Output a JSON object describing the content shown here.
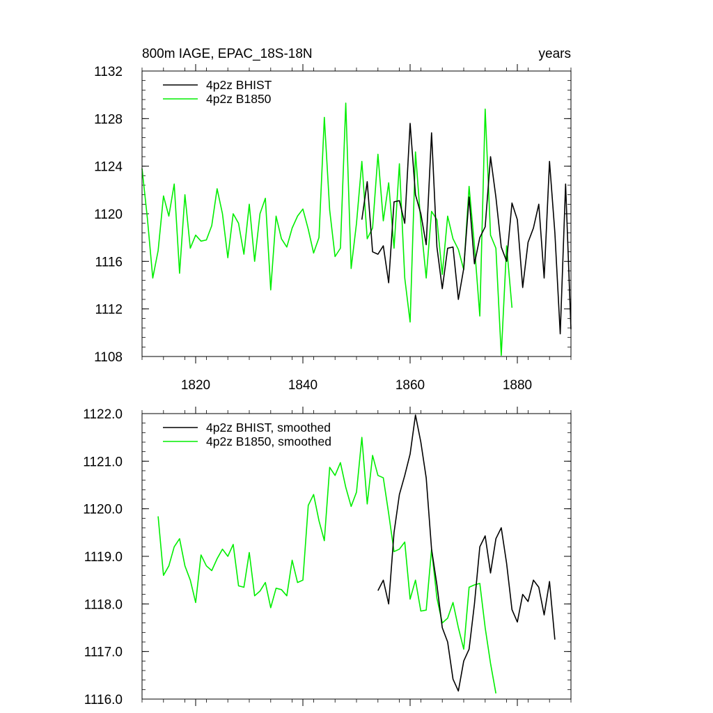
{
  "chart_data": [
    {
      "type": "line",
      "title": "800m IAGE, EPAC_18S-18N",
      "title_right": "years",
      "xlabel": "",
      "ylabel": "",
      "xlim": [
        1810,
        1890
      ],
      "ylim": [
        1108,
        1132
      ],
      "x_ticks": [
        1820,
        1840,
        1860,
        1880
      ],
      "x_tick_labels": [
        "1820",
        "1840",
        "1860",
        "1880"
      ],
      "y_ticks": [
        1108,
        1112,
        1116,
        1120,
        1124,
        1128,
        1132
      ],
      "y_tick_labels": [
        "1108",
        "1112",
        "1116",
        "1120",
        "1124",
        "1128",
        "1132"
      ],
      "grid": false,
      "legend_position": "top-left",
      "series": [
        {
          "name": "4p2z BHIST",
          "color": "#000000",
          "x_start": 1851,
          "values": [
            1119.5,
            1122.7,
            1116.8,
            1116.6,
            1117.3,
            1114.2,
            1121.0,
            1121.1,
            1119.2,
            1127.6,
            1121.6,
            1120.0,
            1117.4,
            1126.8,
            1117.2,
            1113.7,
            1117.1,
            1117.2,
            1112.8,
            1115.4,
            1121.4,
            1115.8,
            1118.0,
            1118.9,
            1124.8,
            1121.4,
            1117.2,
            1116.0,
            1120.9,
            1119.5,
            1113.8,
            1117.6,
            1118.8,
            1120.8,
            1114.6,
            1124.4,
            1118.4,
            1109.9,
            1122.5,
            1110.3
          ]
        },
        {
          "name": "4p2z B1850",
          "color": "#00ee00",
          "x_start": 1810,
          "values": [
            1123.8,
            1119.6,
            1114.6,
            1116.9,
            1121.5,
            1119.8,
            1122.5,
            1115.0,
            1121.6,
            1117.1,
            1118.2,
            1117.7,
            1117.8,
            1119.0,
            1122.1,
            1120.0,
            1116.3,
            1120.0,
            1119.2,
            1116.6,
            1120.8,
            1116.0,
            1120.0,
            1121.3,
            1113.6,
            1119.8,
            1117.9,
            1117.2,
            1118.8,
            1119.8,
            1120.4,
            1118.7,
            1116.7,
            1118.0,
            1128.1,
            1120.3,
            1116.4,
            1117.1,
            1129.3,
            1115.4,
            1119.2,
            1124.4,
            1117.9,
            1118.8,
            1125.0,
            1119.4,
            1122.6,
            1117.1,
            1124.2,
            1114.6,
            1110.9,
            1125.2,
            1119.2,
            1114.6,
            1120.2,
            1119.5,
            1114.9,
            1119.8,
            1117.9,
            1117.0,
            1115.3,
            1122.3,
            1117.3,
            1111.4,
            1128.8,
            1118.2,
            1117.1,
            1108.1,
            1117.3,
            1112.1
          ]
        }
      ]
    },
    {
      "type": "line",
      "title": "",
      "xlabel": "",
      "ylabel": "",
      "xlim": [
        1810,
        1890
      ],
      "ylim": [
        1116.0,
        1122.0
      ],
      "x_ticks": [
        1820,
        1840,
        1860,
        1880
      ],
      "y_ticks": [
        1116.0,
        1117.0,
        1118.0,
        1119.0,
        1120.0,
        1121.0,
        1122.0
      ],
      "y_tick_labels": [
        "1116.0",
        "1117.0",
        "1118.0",
        "1119.0",
        "1120.0",
        "1121.0",
        "1122.0"
      ],
      "grid": false,
      "legend_position": "top-left",
      "series": [
        {
          "name": "4p2z BHIST, smoothed",
          "color": "#000000",
          "x_start": 1854,
          "values": [
            1118.28,
            1118.5,
            1118.0,
            1119.5,
            1120.3,
            1120.7,
            1121.15,
            1121.97,
            1121.4,
            1120.65,
            1119.15,
            1118.4,
            1117.5,
            1117.2,
            1116.42,
            1116.17,
            1116.8,
            1117.05,
            1118.0,
            1119.2,
            1119.43,
            1118.65,
            1119.37,
            1119.6,
            1118.85,
            1117.88,
            1117.62,
            1118.2,
            1118.05,
            1118.5,
            1118.35,
            1117.77,
            1118.47,
            1117.25
          ]
        },
        {
          "name": "4p2z B1850, smoothed",
          "color": "#00ee00",
          "x_start": 1813,
          "values": [
            1119.84,
            1118.6,
            1118.8,
            1119.2,
            1119.37,
            1118.8,
            1118.5,
            1118.03,
            1119.03,
            1118.8,
            1118.7,
            1118.95,
            1119.15,
            1119.0,
            1119.25,
            1118.38,
            1118.35,
            1119.08,
            1118.17,
            1118.27,
            1118.45,
            1117.92,
            1118.33,
            1118.3,
            1118.17,
            1118.92,
            1118.45,
            1118.5,
            1120.07,
            1120.3,
            1119.75,
            1119.33,
            1120.87,
            1120.7,
            1120.97,
            1120.45,
            1120.05,
            1120.35,
            1121.5,
            1120.1,
            1121.12,
            1120.7,
            1120.65,
            1119.9,
            1119.1,
            1119.15,
            1119.3,
            1118.1,
            1118.5,
            1117.85,
            1117.87,
            1119.15,
            1118.12,
            1117.6,
            1117.7,
            1118.03,
            1117.5,
            1117.05,
            1118.35,
            1118.4,
            1118.43,
            1117.5,
            1116.75,
            1116.12
          ]
        }
      ]
    }
  ]
}
